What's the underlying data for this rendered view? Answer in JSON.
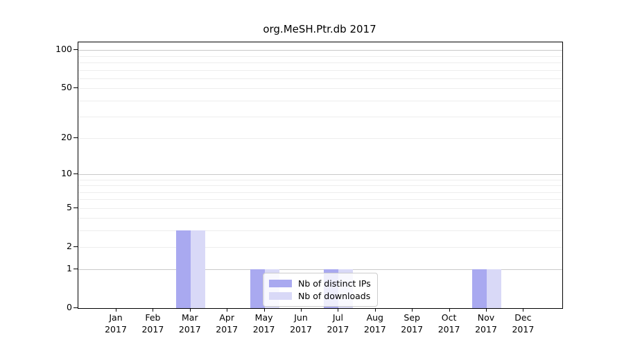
{
  "chart_data": {
    "type": "bar",
    "title": "org.MeSH.Ptr.db 2017",
    "x_tick_year": "2017",
    "categories": [
      "Jan",
      "Feb",
      "Mar",
      "Apr",
      "May",
      "Jun",
      "Jul",
      "Aug",
      "Sep",
      "Oct",
      "Nov",
      "Dec"
    ],
    "series": [
      {
        "name": "Nb of distinct IPs",
        "color": "#a9a9f0",
        "values": [
          0,
          0,
          3,
          0,
          1,
          0,
          1,
          0,
          0,
          0,
          1,
          0
        ]
      },
      {
        "name": "Nb of downloads",
        "color": "#d9d9f7",
        "values": [
          0,
          0,
          3,
          0,
          1,
          0,
          1,
          0,
          0,
          0,
          1,
          0
        ]
      }
    ],
    "y_axis": {
      "scale": "log1p",
      "ticks": [
        0,
        1,
        2,
        5,
        10,
        20,
        50,
        100
      ],
      "major_gridlines": [
        1,
        10,
        100
      ],
      "minor_gridlines": [
        2,
        3,
        4,
        5,
        6,
        7,
        8,
        9,
        20,
        30,
        40,
        50,
        60,
        70,
        80,
        90
      ],
      "major_grid_color": "#c9c9c9",
      "minor_grid_color": "#ededed"
    },
    "legend": {
      "position": "inside-bottom-center"
    },
    "grid": true
  }
}
